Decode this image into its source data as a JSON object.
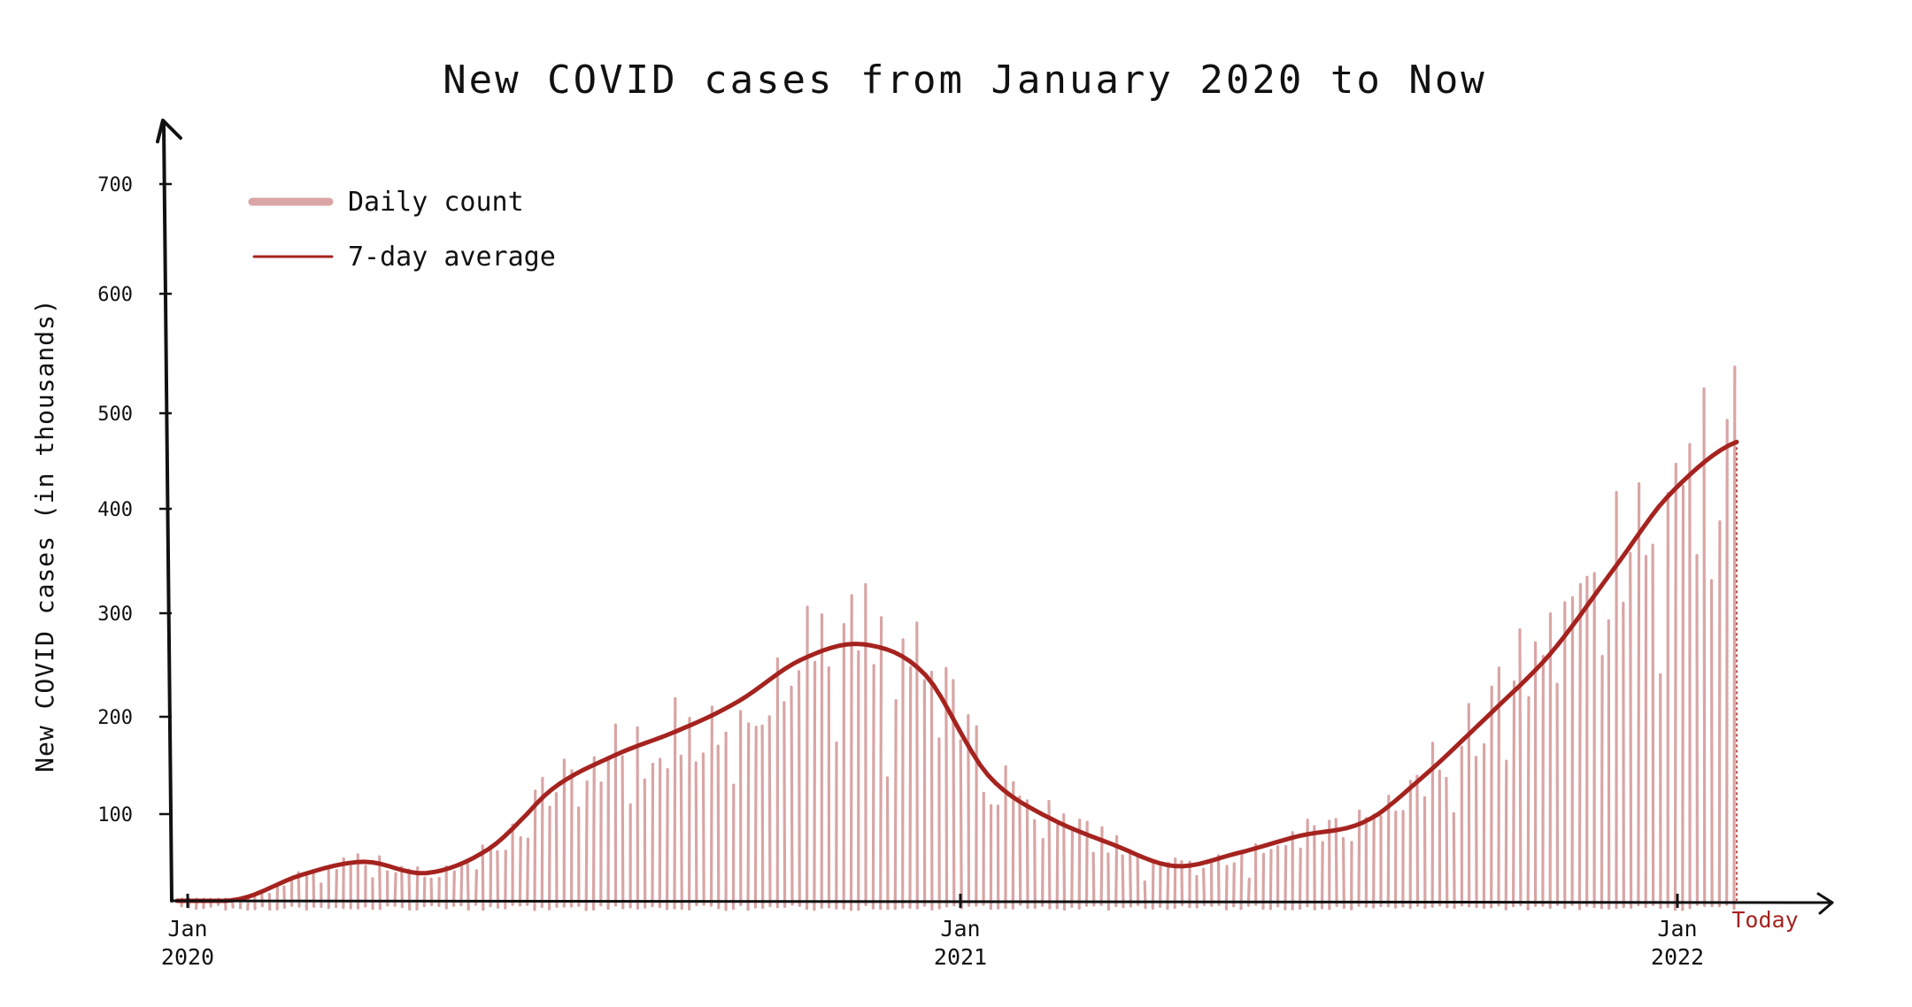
{
  "chart_data": {
    "type": "bar",
    "title": "New COVID cases from January 2020 to Now",
    "ylabel": "New COVID cases (in thousands)",
    "xlabel": "",
    "ylim": [
      0,
      700
    ],
    "y_ticks": [
      "700",
      "600",
      "500",
      "400",
      "300",
      "200",
      "100"
    ],
    "x_ticks": [
      {
        "line1": "Jan",
        "line2": "2020",
        "date": "2020-01"
      },
      {
        "line1": "Jan",
        "line2": "2021",
        "date": "2021-01"
      },
      {
        "line1": "Jan",
        "line2": "2022",
        "date": "2022-01"
      }
    ],
    "today_label": "Today",
    "grid": false,
    "legend_position": "top-left",
    "series": [
      {
        "name": "Daily count",
        "type": "bar",
        "color": "#d9a5a5"
      },
      {
        "name": "7-day average",
        "type": "line",
        "color": "#a5231f"
      }
    ],
    "average_curve": {
      "dates": [
        "2020-01",
        "2020-02",
        "2020-03",
        "2020-04",
        "2020-05",
        "2020-06",
        "2020-07",
        "2020-08",
        "2020-09",
        "2020-10",
        "2020-11",
        "2020-12",
        "2021-01",
        "2021-02",
        "2021-03",
        "2021-04",
        "2021-05",
        "2021-06",
        "2021-07",
        "2021-08",
        "2021-09",
        "2021-10",
        "2021-11",
        "2021-12",
        "2022-01",
        "Today"
      ],
      "values": [
        0,
        2,
        30,
        45,
        32,
        60,
        125,
        160,
        185,
        215,
        255,
        270,
        240,
        140,
        95,
        65,
        40,
        55,
        75,
        90,
        140,
        200,
        260,
        340,
        420,
        470
      ]
    }
  }
}
